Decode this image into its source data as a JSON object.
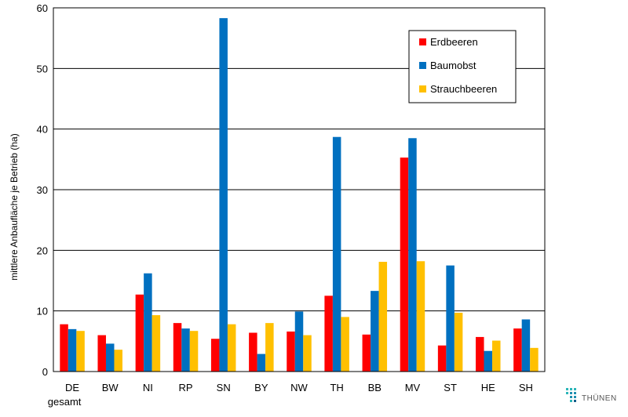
{
  "chart_data": {
    "type": "bar",
    "title": "",
    "xlabel": "",
    "ylabel": "mittlere Anbaufläche je Betrieb (ha)",
    "ylim": [
      0,
      60
    ],
    "yticks": [
      0,
      10,
      20,
      30,
      40,
      50,
      60
    ],
    "grid": true,
    "legend_position": "top-right",
    "categories": [
      "DE gesamt",
      "BW",
      "NI",
      "RP",
      "SN",
      "BY",
      "NW",
      "TH",
      "BB",
      "MV",
      "ST",
      "HE",
      "SH"
    ],
    "category_lines": [
      [
        "DE",
        "gesamt"
      ],
      [
        "BW"
      ],
      [
        "NI"
      ],
      [
        "RP"
      ],
      [
        "SN"
      ],
      [
        "BY"
      ],
      [
        "NW"
      ],
      [
        "TH"
      ],
      [
        "BB"
      ],
      [
        "MV"
      ],
      [
        "ST"
      ],
      [
        "HE"
      ],
      [
        "SH"
      ]
    ],
    "series": [
      {
        "name": "Erdbeeren",
        "color": "#ff0000",
        "values": [
          7.8,
          6.0,
          12.7,
          8.0,
          5.4,
          6.4,
          6.6,
          12.5,
          6.1,
          35.3,
          4.3,
          5.7,
          7.1
        ]
      },
      {
        "name": "Baumobst",
        "color": "#0070c0",
        "values": [
          7.0,
          4.6,
          16.2,
          7.1,
          58.3,
          2.9,
          9.9,
          38.7,
          13.3,
          38.5,
          17.5,
          3.4,
          8.6
        ]
      },
      {
        "name": "Strauchbeeren",
        "color": "#ffc000",
        "values": [
          6.7,
          3.6,
          9.3,
          6.7,
          7.8,
          8.0,
          6.0,
          9.0,
          18.1,
          18.2,
          9.7,
          5.1,
          3.9
        ]
      }
    ]
  },
  "logo": {
    "text": "THÜNEN",
    "icon": "thuenen-dots-icon"
  }
}
